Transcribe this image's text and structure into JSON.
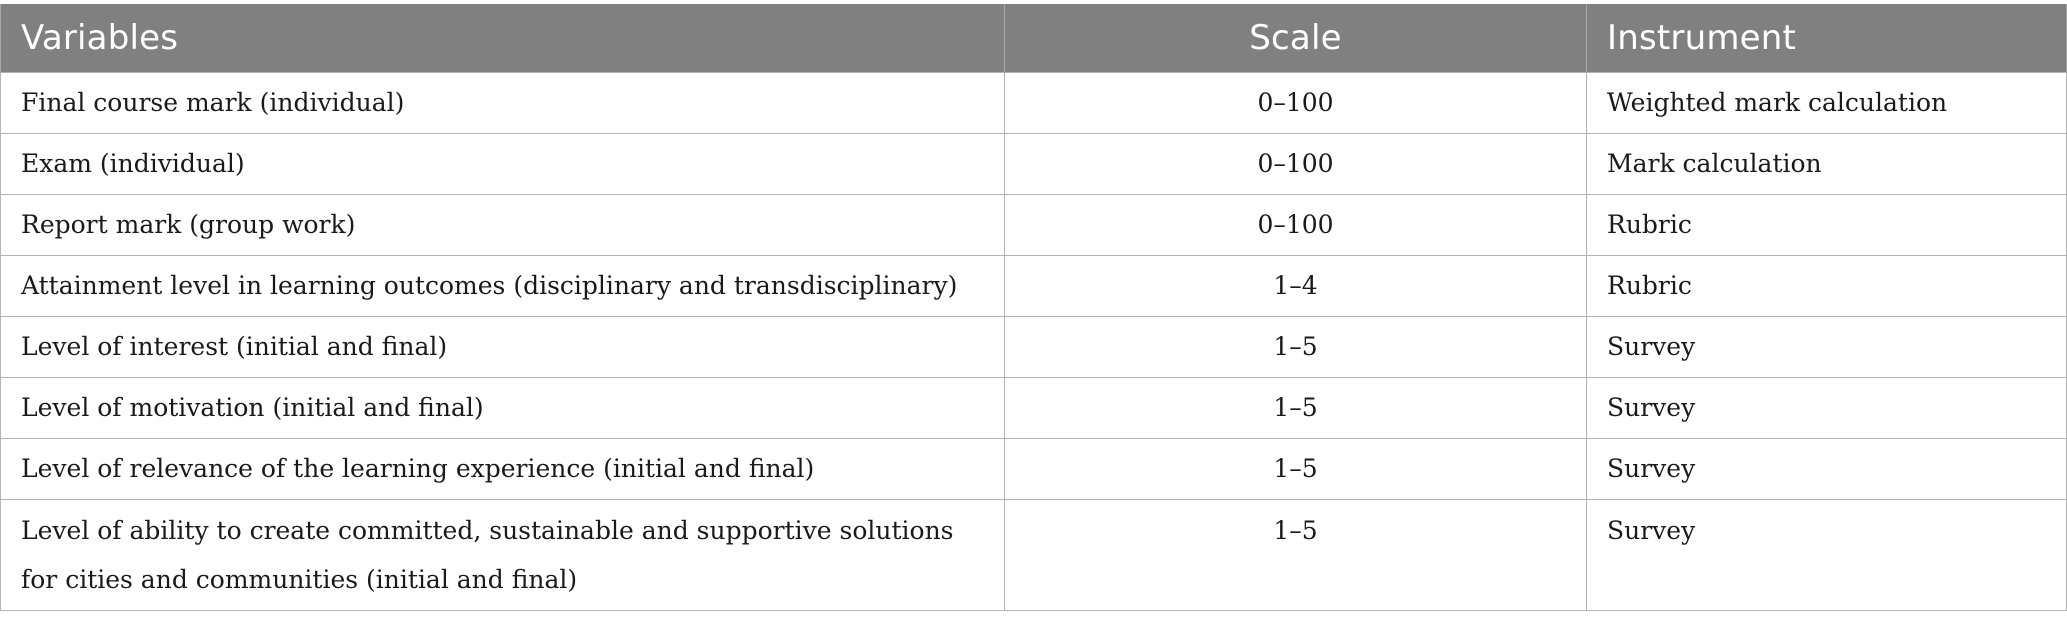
{
  "table": {
    "headers": [
      "Variables",
      "Scale",
      "Instrument"
    ],
    "rows": [
      {
        "variable": "Final course mark (individual)",
        "scale": "0–100",
        "instrument": "Weighted mark calculation"
      },
      {
        "variable": "Exam (individual)",
        "scale": "0–100",
        "instrument": "Mark calculation"
      },
      {
        "variable": "Report mark (group work)",
        "scale": "0–100",
        "instrument": "Rubric"
      },
      {
        "variable": "Attainment level in learning outcomes (disciplinary and transdisciplinary)",
        "scale": "1–4",
        "instrument": "Rubric"
      },
      {
        "variable": "Level of interest (initial and final)",
        "scale": "1–5",
        "instrument": "Survey"
      },
      {
        "variable": "Level of motivation (initial and final)",
        "scale": "1–5",
        "instrument": "Survey"
      },
      {
        "variable": "Level of relevance of the learning experience (initial and final)",
        "scale": "1–5",
        "instrument": "Survey"
      },
      {
        "variable": "Level of ability to create committed, sustainable and supportive solutions for cities and communities (initial and final)",
        "scale": "1–5",
        "instrument": "Survey"
      }
    ]
  }
}
